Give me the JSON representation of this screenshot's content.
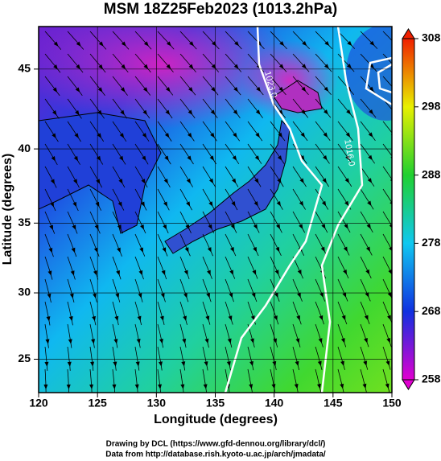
{
  "chart_data": {
    "type": "map",
    "title": "MSM 18Z25Feb2023 (1013.2hPa)",
    "xlabel": "Longitude (degrees)",
    "ylabel": "Latitude  (degrees)",
    "projection": "mercator",
    "xlim": [
      120,
      150
    ],
    "xticks": [
      120,
      125,
      130,
      135,
      140,
      145,
      150
    ],
    "ylim": [
      22.4,
      47.5
    ],
    "yticks": [
      25,
      30,
      35,
      40,
      45
    ],
    "grid": true,
    "contour_labels": [
      "1023.0",
      "1016.0"
    ],
    "colorbar": {
      "range": [
        258,
        308
      ],
      "ticks": [
        258,
        268,
        278,
        288,
        298,
        308
      ],
      "colors": [
        "#e000d0",
        "#1030e0",
        "#10c8f0",
        "#20d030",
        "#e8f000",
        "#f02000"
      ]
    },
    "footer": [
      "Drawing by DCL (https://www.gfd-dennou.org/library/dcl/)",
      "Data from http://database.rish.kyoto-u.ac.jp/arch/jmadata/"
    ]
  }
}
